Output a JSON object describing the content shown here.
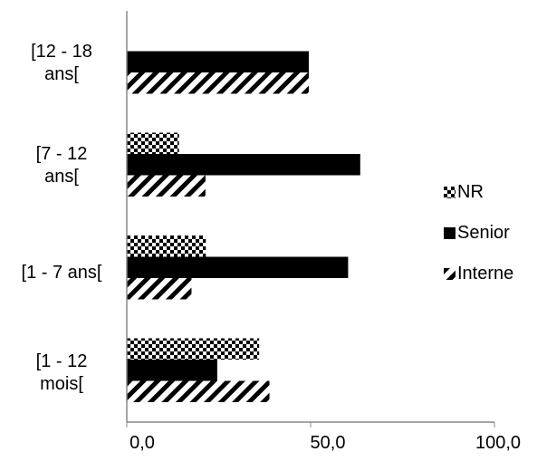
{
  "chart_data": {
    "type": "bar",
    "orientation": "horizontal",
    "categories": [
      "[12 - 18\nans[",
      "[7  - 12\nans[",
      "[1 - 7 ans[",
      "[1 - 12\nmois["
    ],
    "series": [
      {
        "name": "NR",
        "pattern": "checker",
        "values": [
          0,
          14.2,
          21.5,
          36.0
        ]
      },
      {
        "name": "Senior",
        "pattern": "solid",
        "values": [
          49.5,
          63.5,
          60.2,
          24.6
        ]
      },
      {
        "name": "Interne",
        "pattern": "diagonal",
        "values": [
          49.5,
          21.4,
          17.6,
          38.8
        ]
      }
    ],
    "xticks": [
      "0,0",
      "50,0",
      "100,0"
    ],
    "xlim": [
      0,
      100
    ],
    "grid": false,
    "legend_position": "right",
    "colors": {
      "fill": "#000000",
      "background": "#ffffff"
    }
  }
}
